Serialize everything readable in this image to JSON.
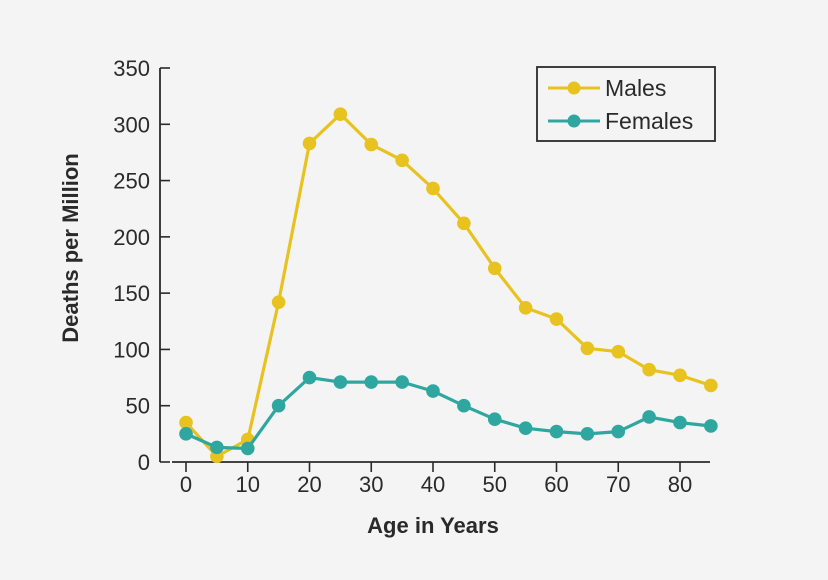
{
  "chart_data": {
    "type": "line",
    "xlabel": "Age in Years",
    "ylabel": "Deaths per Million",
    "xlim": [
      -3,
      85
    ],
    "ylim": [
      0,
      350
    ],
    "x_ticks": [
      0,
      10,
      20,
      30,
      40,
      50,
      60,
      70,
      80
    ],
    "y_ticks": [
      0,
      50,
      100,
      150,
      200,
      250,
      300,
      350
    ],
    "grid": false,
    "legend_position": "top-right",
    "x": [
      0,
      5,
      10,
      15,
      20,
      25,
      30,
      35,
      40,
      45,
      50,
      55,
      60,
      65,
      70,
      75,
      80,
      85
    ],
    "series": [
      {
        "name": "Males",
        "color": "#e8c21f",
        "values": [
          35,
          5,
          20,
          142,
          283,
          309,
          282,
          268,
          243,
          212,
          172,
          137,
          127,
          101,
          98,
          82,
          77,
          68
        ]
      },
      {
        "name": "Females",
        "color": "#2fa7a0",
        "values": [
          25,
          13,
          12,
          50,
          75,
          71,
          71,
          71,
          63,
          50,
          38,
          30,
          27,
          25,
          27,
          40,
          35,
          32
        ]
      }
    ]
  },
  "colors": {
    "background": "#f4f4f4",
    "axis": "#2a2a2a"
  }
}
